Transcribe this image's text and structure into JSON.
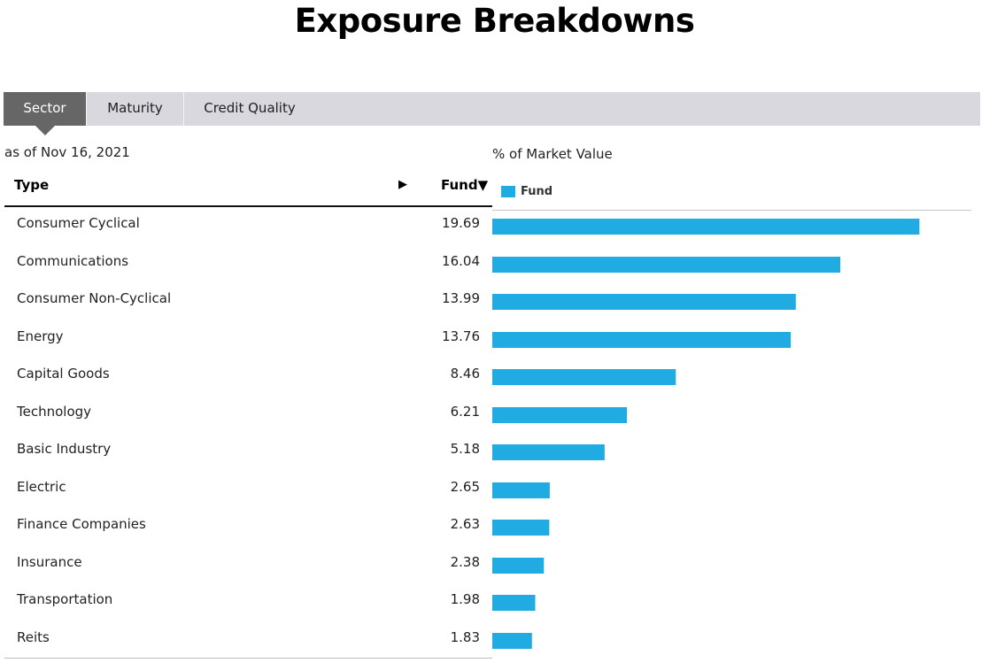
{
  "page": {
    "title": "Exposure Breakdowns",
    "as_of": "as of Nov 16, 2021"
  },
  "tabs": [
    {
      "label": "Sector",
      "active": true
    },
    {
      "label": "Maturity",
      "active": false
    },
    {
      "label": "Credit Quality",
      "active": false
    }
  ],
  "table": {
    "col_type": "Type",
    "col_type_sort_icon": "play-right-icon",
    "col_fund": "Fund▼"
  },
  "chart_data": {
    "type": "bar",
    "orientation": "horizontal",
    "axis_label": "% of Market Value",
    "legend": {
      "label": "Fund",
      "placement": "top-left"
    },
    "bar_color": "#20ace2",
    "xlim": [
      0,
      20
    ],
    "categories": [
      "Consumer Cyclical",
      "Communications",
      "Consumer Non-Cyclical",
      "Energy",
      "Capital Goods",
      "Technology",
      "Basic Industry",
      "Electric",
      "Finance Companies",
      "Insurance",
      "Transportation",
      "Reits"
    ],
    "series": [
      {
        "name": "Fund",
        "values": [
          19.69,
          16.04,
          13.99,
          13.76,
          8.46,
          6.21,
          5.18,
          2.65,
          2.63,
          2.38,
          1.98,
          1.83
        ]
      }
    ],
    "value_labels": [
      "19.69",
      "16.04",
      "13.99",
      "13.76",
      "8.46",
      "6.21",
      "5.18",
      "2.65",
      "2.63",
      "2.38",
      "1.98",
      "1.83"
    ],
    "grid": false
  }
}
